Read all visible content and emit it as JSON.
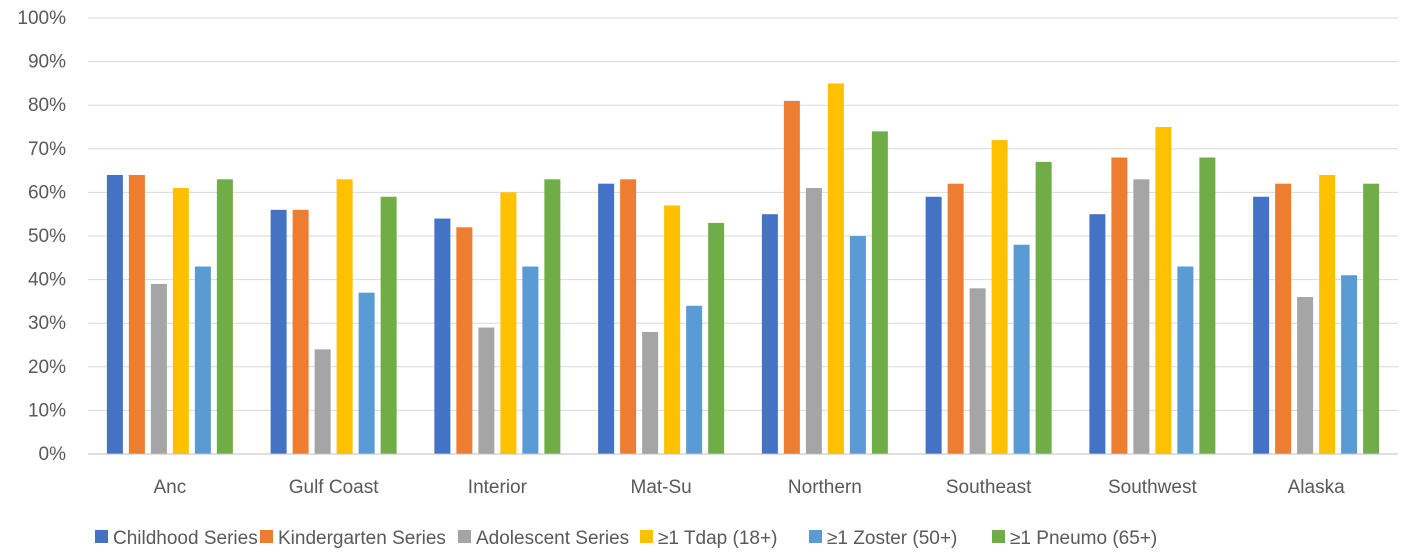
{
  "chart_data": {
    "type": "bar",
    "categories": [
      "Anc",
      "Gulf Coast",
      "Interior",
      "Mat-Su",
      "Northern",
      "Southeast",
      "Southwest",
      "Alaska"
    ],
    "series": [
      {
        "name": "Childhood Series",
        "color": "#4472C4",
        "values": [
          64,
          56,
          54,
          62,
          55,
          59,
          55,
          59
        ]
      },
      {
        "name": "Kindergarten Series",
        "color": "#ED7D31",
        "values": [
          64,
          56,
          52,
          63,
          81,
          62,
          68,
          62
        ]
      },
      {
        "name": "Adolescent Series",
        "color": "#A5A5A5",
        "values": [
          39,
          24,
          29,
          28,
          61,
          38,
          63,
          36
        ]
      },
      {
        "name": "≥1 Tdap (18+)",
        "color": "#FFC000",
        "values": [
          61,
          63,
          60,
          57,
          85,
          72,
          75,
          64
        ]
      },
      {
        "name": "≥1 Zoster (50+)",
        "color": "#5B9BD5",
        "values": [
          43,
          37,
          43,
          34,
          50,
          48,
          43,
          41
        ]
      },
      {
        "name": "≥1 Pneumo (65+)",
        "color": "#70AD47",
        "values": [
          63,
          59,
          63,
          53,
          74,
          67,
          68,
          62
        ]
      }
    ],
    "yticks": [
      "0%",
      "10%",
      "20%",
      "30%",
      "40%",
      "50%",
      "60%",
      "70%",
      "80%",
      "90%",
      "100%"
    ],
    "ylim": [
      0,
      100
    ],
    "grid": true,
    "legend": "bottom"
  }
}
